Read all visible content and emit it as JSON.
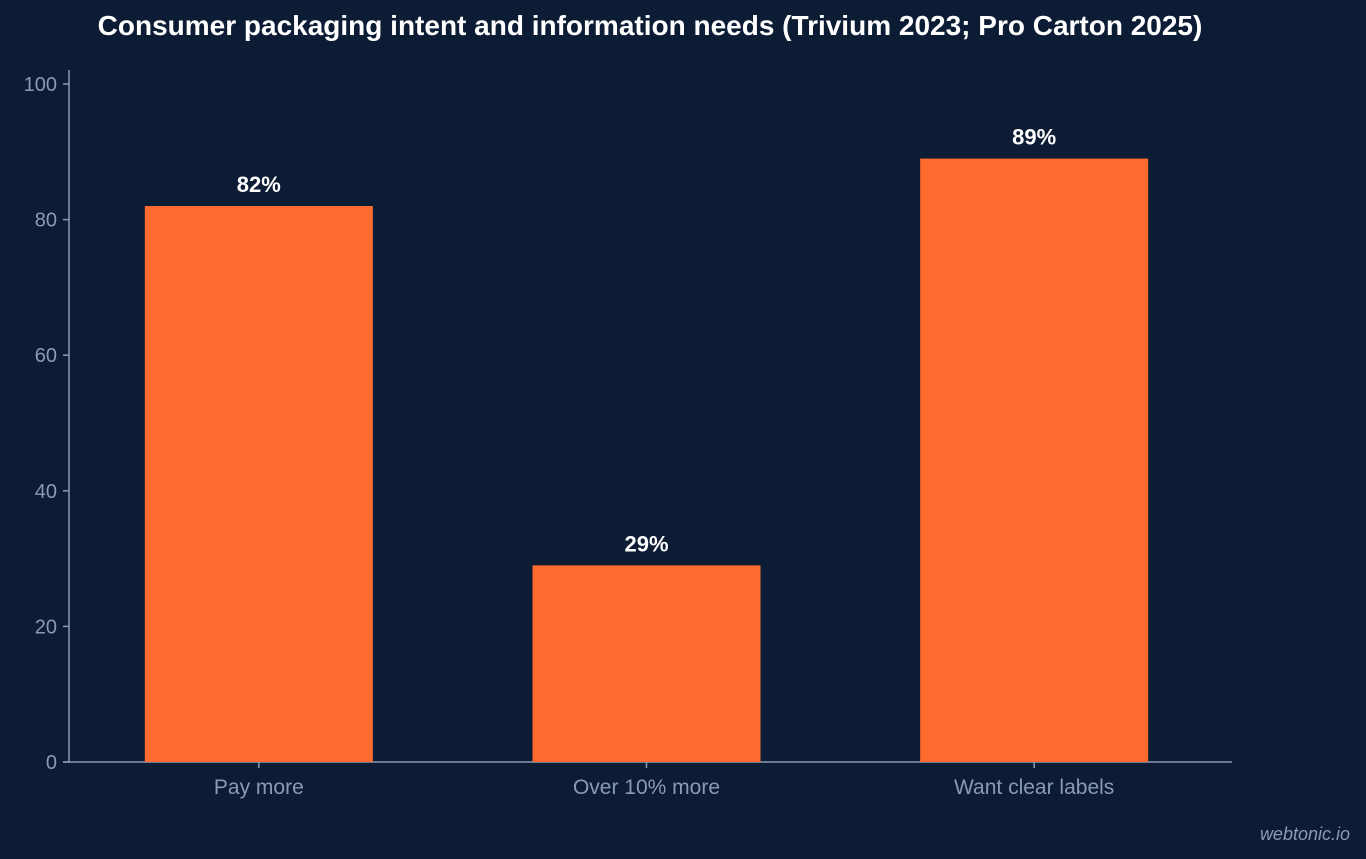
{
  "chart_data": {
    "type": "bar",
    "title": "Consumer packaging intent and information needs (Trivium 2023; Pro Carton 2025)",
    "categories": [
      "Pay more",
      "Over 10% more",
      "Want clear labels"
    ],
    "values": [
      82,
      29,
      89
    ],
    "data_labels": [
      "82%",
      "29%",
      "89%"
    ],
    "xlabel": "",
    "ylabel": "",
    "ylim": [
      0,
      100
    ],
    "yticks": [
      0,
      20,
      40,
      60,
      80,
      100
    ],
    "grid": false,
    "legend": "none",
    "bar_color": "#ff6b2e"
  },
  "colors": {
    "background": "#0c1c34",
    "axis": "#8a9ab5",
    "text": "#ffffff"
  },
  "watermark": "webtonic.io"
}
